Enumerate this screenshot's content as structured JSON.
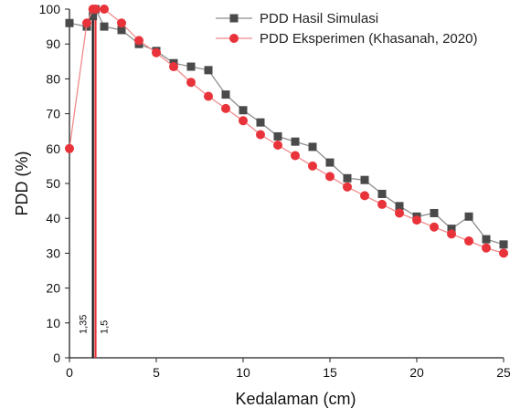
{
  "chart_data": {
    "type": "line",
    "xlabel": "Kedalaman (cm)",
    "ylabel": "PDD (%)",
    "xlim": [
      0,
      25
    ],
    "ylim": [
      0,
      100
    ],
    "xticks": [
      0,
      5,
      10,
      15,
      20,
      25
    ],
    "yticks": [
      0,
      10,
      20,
      30,
      40,
      50,
      60,
      70,
      80,
      90,
      100
    ],
    "grid": false,
    "legend_position": "top-right",
    "series": [
      {
        "name": "PDD Hasil Simulasi",
        "color": "#4a4a4a",
        "marker": "square",
        "x": [
          0,
          1,
          1.35,
          1.5,
          2,
          3,
          4,
          5,
          6,
          7,
          8,
          9,
          10,
          11,
          12,
          13,
          14,
          15,
          16,
          17,
          18,
          19,
          20,
          21,
          22,
          23,
          24,
          25
        ],
        "y": [
          96,
          95,
          98,
          100,
          95,
          94,
          90,
          88,
          84.5,
          83.5,
          82.5,
          75.5,
          71,
          67.5,
          63.5,
          62,
          60.5,
          56,
          51.5,
          51,
          47,
          43.5,
          40.5,
          41.5,
          37,
          40.5,
          34,
          32.5
        ]
      },
      {
        "name": "PDD Eksperimen (Khasanah, 2020)",
        "color": "#e8333a",
        "marker": "circle",
        "x": [
          0,
          1,
          1.35,
          1.5,
          2,
          3,
          4,
          5,
          6,
          7,
          8,
          9,
          10,
          11,
          12,
          13,
          14,
          15,
          16,
          17,
          18,
          19,
          20,
          21,
          22,
          23,
          24,
          25
        ],
        "y": [
          60,
          96,
          100,
          100,
          100,
          96,
          91,
          87.5,
          83.5,
          79,
          75,
          71.5,
          68,
          64,
          61,
          58,
          55,
          52,
          49,
          46.5,
          44,
          41.5,
          39.5,
          37.5,
          35.5,
          33.5,
          31.5,
          30
        ]
      }
    ],
    "annotations": [
      {
        "label": "1,35",
        "x": 1.35,
        "color": "#111111"
      },
      {
        "label": "1,5",
        "x": 1.5,
        "color": "#e8333a"
      }
    ]
  }
}
